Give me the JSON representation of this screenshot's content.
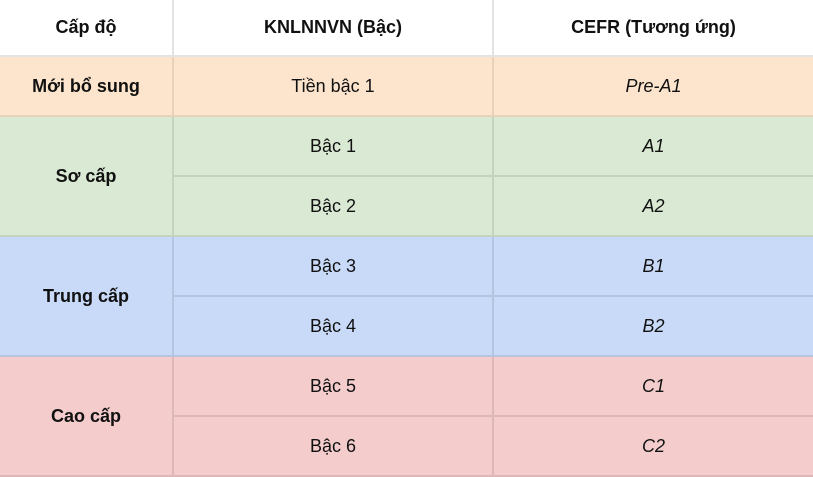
{
  "headers": [
    "Cấp độ",
    "KNLNNVN (Bậc)",
    "CEFR (Tương ứng)"
  ],
  "colors": {
    "orange": "#fde5cd",
    "green": "#d9e9d3",
    "blue": "#c9daf8",
    "red": "#f4cccc"
  },
  "groups": [
    {
      "level": "Mới bổ sung",
      "rows": [
        {
          "knl": "Tiền bậc 1",
          "cefr": "Pre-A1"
        }
      ]
    },
    {
      "level": "Sơ cấp",
      "rows": [
        {
          "knl": "Bậc 1",
          "cefr": "A1"
        },
        {
          "knl": "Bậc 2",
          "cefr": "A2"
        }
      ]
    },
    {
      "level": "Trung cấp",
      "rows": [
        {
          "knl": "Bậc 3",
          "cefr": "B1"
        },
        {
          "knl": "Bậc 4",
          "cefr": "B2"
        }
      ]
    },
    {
      "level": "Cao cấp",
      "rows": [
        {
          "knl": "Bậc 5",
          "cefr": "C1"
        },
        {
          "knl": "Bậc 6",
          "cefr": "C2"
        }
      ]
    }
  ]
}
